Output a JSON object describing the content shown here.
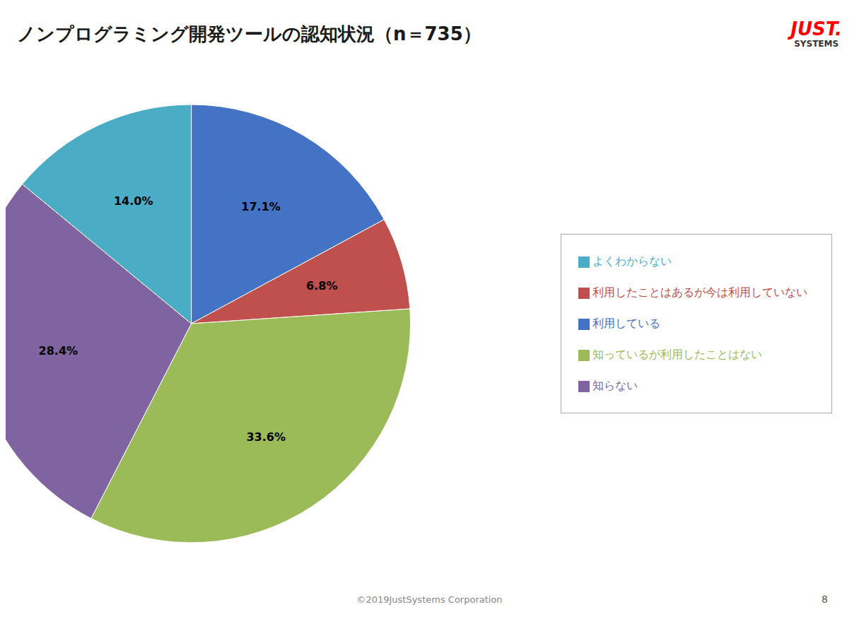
{
  "chart_data": {
    "type": "pie",
    "title": "ノンプログラミング開発ツールの認知状況（n＝735）",
    "categories": [
      "利用している",
      "利用したことはあるが今は利用していない",
      "知っているが利用したことはない",
      "知らない",
      "よくわからない"
    ],
    "values": [
      17.1,
      6.8,
      33.6,
      28.4,
      14.0
    ],
    "value_labels": [
      "17.1%",
      "6.8%",
      "33.6%",
      "28.4%",
      "14.0%"
    ],
    "colors": [
      "#4472C4",
      "#C0504D",
      "#9BBB59",
      "#8064A2",
      "#4BACC6"
    ],
    "data_labels": true,
    "legend": "right",
    "annotations": [
      "JUST.",
      "SYSTEMS",
      "©2019JustSystems Corporation",
      "8"
    ]
  }
}
